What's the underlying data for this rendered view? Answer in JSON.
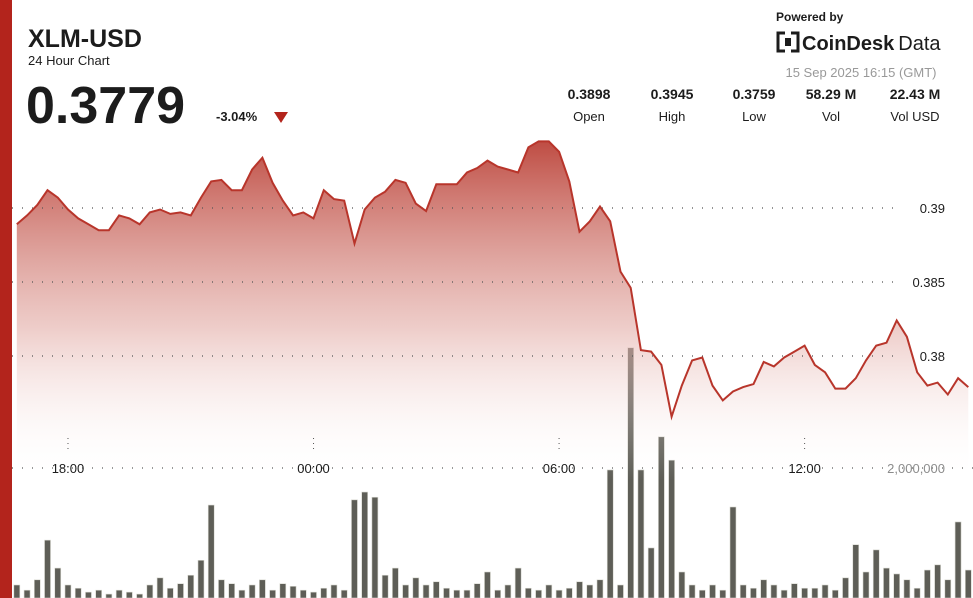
{
  "header": {
    "title": "XLM-USD",
    "subtitle": "24 Hour Chart",
    "price": "0.3779",
    "change": "-3.04%",
    "powered_by": "Powered by",
    "brand": "CoinDesk",
    "brand_suffix": "Data",
    "timestamp": "15 Sep 2025 16:15 (GMT)",
    "stats": [
      {
        "value": "0.3898",
        "label": "Open"
      },
      {
        "value": "0.3945",
        "label": "High"
      },
      {
        "value": "0.3759",
        "label": "Low"
      },
      {
        "value": "58.29 M",
        "label": "Vol"
      },
      {
        "value": "22.43 M",
        "label": "Vol USD"
      }
    ]
  },
  "chart_data": [
    {
      "type": "area",
      "color": "#b8352b",
      "x": [
        16.75,
        17,
        17.25,
        17.5,
        17.75,
        18,
        18.25,
        18.5,
        18.75,
        19,
        19.25,
        19.5,
        19.75,
        20,
        20.25,
        20.5,
        20.75,
        21,
        21.25,
        21.5,
        21.75,
        22,
        22.25,
        22.5,
        22.75,
        23,
        23.25,
        23.5,
        23.75,
        24,
        24.25,
        24.5,
        24.75,
        25,
        25.25,
        25.5,
        25.75,
        26,
        26.25,
        26.5,
        26.75,
        27,
        27.25,
        27.5,
        27.75,
        28,
        28.25,
        28.5,
        28.75,
        29,
        29.25,
        29.5,
        29.75,
        30,
        30.25,
        30.5,
        30.75,
        31,
        31.25,
        31.5,
        31.75,
        32,
        32.25,
        32.5,
        32.75,
        33,
        33.25,
        33.5,
        33.75,
        34,
        34.25,
        34.5,
        34.75,
        35,
        35.25,
        35.5,
        35.75,
        36,
        36.25,
        36.5,
        36.75,
        37,
        37.25,
        37.5,
        37.75,
        38,
        38.25,
        38.5,
        38.75,
        39,
        39.25,
        39.5,
        39.75,
        40
      ],
      "values": [
        0.3889,
        0.3895,
        0.3902,
        0.3912,
        0.3907,
        0.3899,
        0.3893,
        0.3889,
        0.3885,
        0.3885,
        0.3895,
        0.3893,
        0.3889,
        0.3897,
        0.3899,
        0.3896,
        0.3897,
        0.3895,
        0.3907,
        0.3918,
        0.3919,
        0.3912,
        0.3912,
        0.3926,
        0.3934,
        0.3917,
        0.3905,
        0.3895,
        0.3897,
        0.3893,
        0.3912,
        0.3906,
        0.3905,
        0.3876,
        0.3899,
        0.3907,
        0.3911,
        0.3919,
        0.3917,
        0.3903,
        0.3898,
        0.3916,
        0.3916,
        0.3916,
        0.3924,
        0.3927,
        0.3932,
        0.3928,
        0.3926,
        0.3924,
        0.3941,
        0.3945,
        0.3945,
        0.3938,
        0.3918,
        0.3884,
        0.3891,
        0.3901,
        0.3891,
        0.3857,
        0.3846,
        0.3804,
        0.3803,
        0.3794,
        0.3759,
        0.378,
        0.3797,
        0.3799,
        0.378,
        0.377,
        0.3776,
        0.3779,
        0.3781,
        0.3796,
        0.3793,
        0.3799,
        0.3803,
        0.3807,
        0.3794,
        0.3789,
        0.3778,
        0.3778,
        0.3785,
        0.3797,
        0.3807,
        0.3809,
        0.3824,
        0.3813,
        0.3789,
        0.378,
        0.3782,
        0.3774,
        0.3785,
        0.3779
      ],
      "xlim": [
        16.5,
        40.1
      ],
      "ylim": [
        0.371,
        0.396
      ],
      "yticks": [
        0.39,
        0.385,
        0.38
      ],
      "xticks": [
        {
          "value": 18,
          "label": "18:00"
        },
        {
          "value": 24,
          "label": "00:00"
        },
        {
          "value": 30,
          "label": "06:00"
        },
        {
          "value": 36,
          "label": "12:00"
        }
      ],
      "grid": true
    },
    {
      "type": "bar",
      "color": "#5e5e57",
      "x": [
        16.75,
        17,
        17.25,
        17.5,
        17.75,
        18,
        18.25,
        18.5,
        18.75,
        19,
        19.25,
        19.5,
        19.75,
        20,
        20.25,
        20.5,
        20.75,
        21,
        21.25,
        21.5,
        21.75,
        22,
        22.25,
        22.5,
        22.75,
        23,
        23.25,
        23.5,
        23.75,
        24,
        24.25,
        24.5,
        24.75,
        25,
        25.25,
        25.5,
        25.75,
        26,
        26.25,
        26.5,
        26.75,
        27,
        27.25,
        27.5,
        27.75,
        28,
        28.25,
        28.5,
        28.75,
        29,
        29.25,
        29.5,
        29.75,
        30,
        30.25,
        30.5,
        30.75,
        31,
        31.25,
        31.5,
        31.75,
        32,
        32.25,
        32.5,
        32.75,
        33,
        33.25,
        33.5,
        33.75,
        34,
        34.25,
        34.5,
        34.75,
        35,
        35.25,
        35.5,
        35.75,
        36,
        36.25,
        36.5,
        36.75,
        37,
        37.25,
        37.5,
        37.75,
        38,
        38.25,
        38.5,
        38.75,
        39,
        39.25,
        39.5,
        39.75,
        40
      ],
      "values": [
        200000,
        120000,
        280000,
        890000,
        460000,
        200000,
        150000,
        90000,
        120000,
        60000,
        120000,
        90000,
        60000,
        200000,
        310000,
        150000,
        220000,
        350000,
        580000,
        1430000,
        280000,
        220000,
        120000,
        200000,
        280000,
        120000,
        220000,
        180000,
        120000,
        90000,
        150000,
        200000,
        120000,
        1510000,
        1630000,
        1550000,
        350000,
        460000,
        200000,
        310000,
        200000,
        250000,
        150000,
        120000,
        120000,
        220000,
        400000,
        120000,
        200000,
        460000,
        150000,
        120000,
        200000,
        120000,
        150000,
        250000,
        200000,
        280000,
        1970000,
        200000,
        3850000,
        1970000,
        770000,
        2480000,
        2120000,
        400000,
        200000,
        120000,
        200000,
        120000,
        1400000,
        200000,
        150000,
        280000,
        200000,
        120000,
        220000,
        150000,
        150000,
        200000,
        120000,
        310000,
        820000,
        400000,
        740000,
        460000,
        370000,
        280000,
        150000,
        430000,
        510000,
        280000,
        1170000,
        430000
      ],
      "xlim": [
        16.5,
        40.1
      ],
      "ylim": [
        0,
        4000000
      ],
      "yticks": [
        {
          "value": 2000000,
          "label": "2,000,000"
        }
      ],
      "grid": true
    }
  ]
}
